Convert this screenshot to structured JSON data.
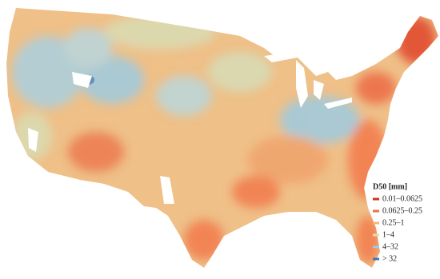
{
  "legend": {
    "title": "D50 [mm]",
    "items": [
      {
        "label": "0.01–0.0625",
        "color": "#d7301f"
      },
      {
        "label": "0.0625–0.25",
        "color": "#f46d43"
      },
      {
        "label": "0.25–1",
        "color": "#f3b77a"
      },
      {
        "label": "1–4",
        "color": "#e3ddb0"
      },
      {
        "label": "4–32",
        "color": "#9ecae1"
      },
      {
        "label": "> 32",
        "color": "#4575b4"
      }
    ]
  }
}
